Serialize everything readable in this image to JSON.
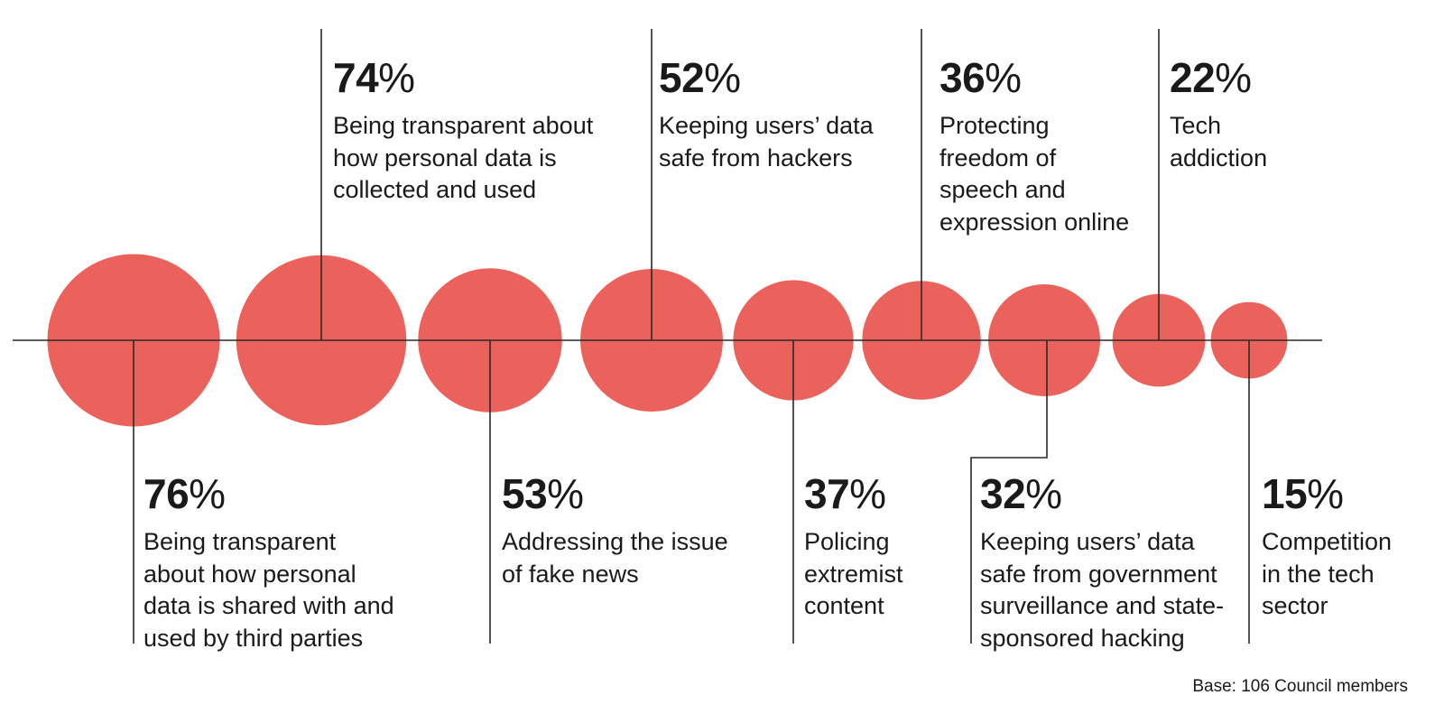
{
  "chart_data": {
    "type": "bubble",
    "unit": "%",
    "items": [
      {
        "value": 76,
        "label_lines": [
          "Being transparent",
          "about how personal",
          "data is shared with and",
          "used by third parties"
        ]
      },
      {
        "value": 74,
        "label_lines": [
          "Being transparent about",
          "how personal data is",
          "collected and used"
        ]
      },
      {
        "value": 53,
        "label_lines": [
          "Addressing the issue",
          "of fake news"
        ]
      },
      {
        "value": 52,
        "label_lines": [
          "Keeping users’ data",
          "safe from hackers"
        ]
      },
      {
        "value": 37,
        "label_lines": [
          "Policing",
          "extremist",
          "content"
        ]
      },
      {
        "value": 36,
        "label_lines": [
          "Protecting",
          "freedom of",
          "speech and",
          "expression online"
        ]
      },
      {
        "value": 32,
        "label_lines": [
          "Keeping users’ data",
          "safe from government",
          "surveillance and state-",
          "sponsored hacking"
        ]
      },
      {
        "value": 22,
        "label_lines": [
          "Tech",
          "addiction"
        ]
      },
      {
        "value": 15,
        "label_lines": [
          "Competition",
          "in the tech",
          "sector"
        ]
      }
    ],
    "bubble_color": "#EB615B",
    "line_color": "#2a2a2a",
    "label_placement": [
      "below",
      "above",
      "below",
      "above",
      "below",
      "above",
      "below",
      "above",
      "below"
    ]
  },
  "footnote": "Base: 106 Council members"
}
